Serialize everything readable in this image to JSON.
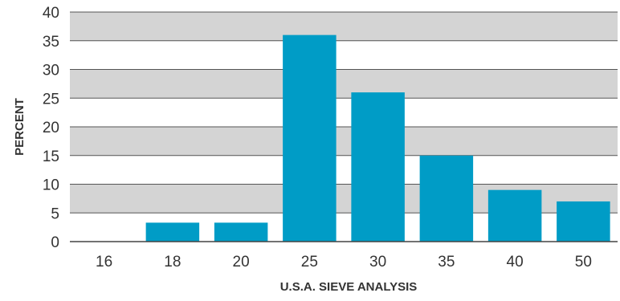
{
  "chart_data": {
    "type": "bar",
    "title": "",
    "xlabel": "U.S.A. SIEVE ANALYSIS",
    "ylabel": "PERCENT",
    "categories": [
      "16",
      "18",
      "20",
      "25",
      "30",
      "35",
      "40",
      "50"
    ],
    "values": [
      0,
      3.3,
      3.3,
      36,
      26,
      15,
      9,
      7
    ],
    "ylim": [
      0,
      40
    ],
    "yticks": [
      0,
      5,
      10,
      15,
      20,
      25,
      30,
      35,
      40
    ],
    "bar_color": "#009cc6",
    "band_colors": [
      "#ffffff",
      "#d4d4d4"
    ],
    "gridlines": true,
    "legend": "none"
  }
}
